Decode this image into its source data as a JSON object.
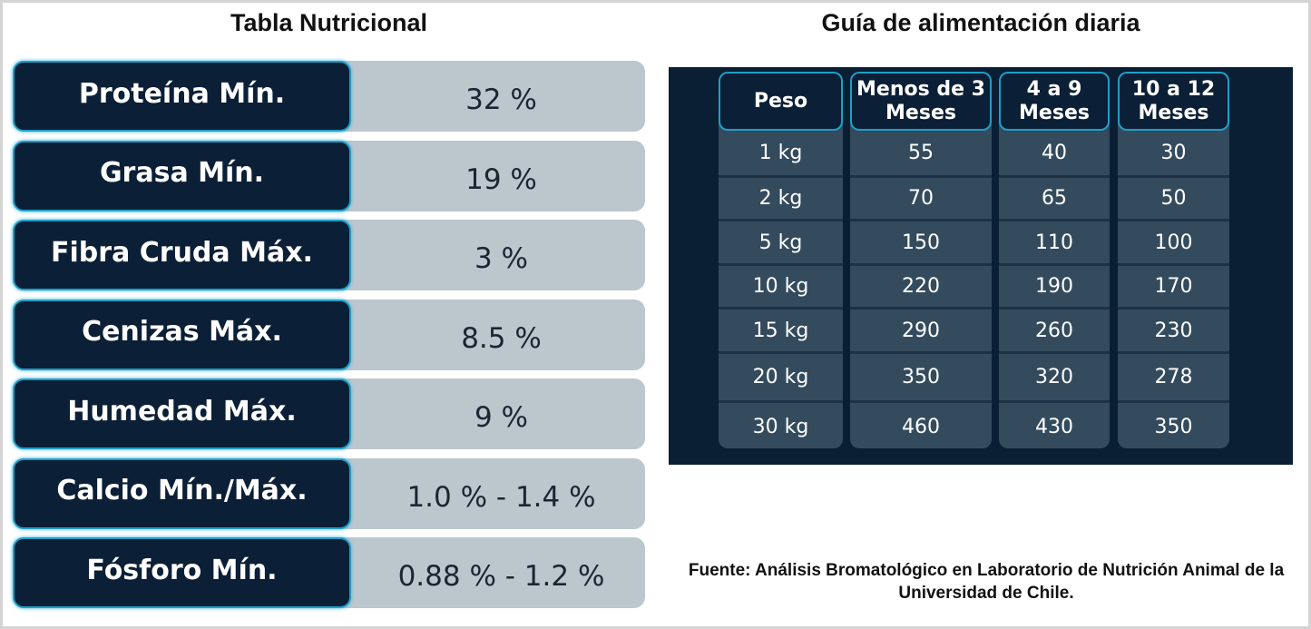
{
  "nutrition": {
    "title": "Tabla Nutricional",
    "rows": [
      {
        "label": "Proteína Mín.",
        "value": "32 %"
      },
      {
        "label": "Grasa Mín.",
        "value": "19 %"
      },
      {
        "label": "Fibra Cruda Máx.",
        "value": "3 %"
      },
      {
        "label": "Cenizas Máx.",
        "value": "8.5 %"
      },
      {
        "label": "Humedad Máx.",
        "value": "9 %"
      },
      {
        "label": "Calcio Mín./Máx.",
        "value": "1.0 % - 1.4 %"
      },
      {
        "label": "Fósforo Mín.",
        "value": "0.88 % - 1.2 %"
      }
    ]
  },
  "feeding": {
    "title": "Guía de alimentación diaria",
    "headers": [
      "Peso",
      "Menos de 3 Meses",
      "4 a 9 Meses",
      "10 a 12 Meses"
    ],
    "columns": [
      [
        "1 kg",
        "2 kg",
        "5 kg",
        "10 kg",
        "15 kg",
        "20 kg",
        "30 kg"
      ],
      [
        "55",
        "70",
        "150",
        "220",
        "290",
        "350",
        "460"
      ],
      [
        "40",
        "65",
        "110",
        "190",
        "260",
        "320",
        "430"
      ],
      [
        "30",
        "50",
        "100",
        "170",
        "230",
        "278",
        "350"
      ]
    ]
  },
  "source": "Fuente: Análisis Bromatológico en Laboratorio de Nutrición Animal de la Universidad de Chile."
}
